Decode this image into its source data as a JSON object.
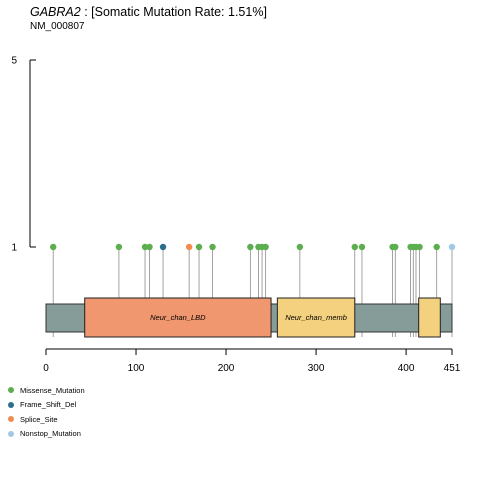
{
  "header": {
    "gene": "GABRA2",
    "rate_text": " : [Somatic Mutation Rate: 1.51%]",
    "transcript": "NM_000807"
  },
  "chart_data": {
    "type": "lollipop",
    "protein_length": 451,
    "xlim": [
      0,
      451
    ],
    "x_ticks": [
      0,
      100,
      200,
      300,
      400,
      451
    ],
    "y_ticks": [
      1,
      5
    ],
    "ylim": [
      0,
      5
    ],
    "domains": [
      {
        "label": "Neur_chan_LBD",
        "start": 43,
        "end": 250,
        "color": "#F0976F"
      },
      {
        "label": "Neur_chan_memb",
        "start": 257,
        "end": 343,
        "color": "#F4D17E"
      },
      {
        "label": "",
        "start": 414,
        "end": 438,
        "color": "#F4D17E"
      }
    ],
    "mutations": [
      {
        "pos": 8,
        "count": 1,
        "type": "Missense_Mutation"
      },
      {
        "pos": 81,
        "count": 1,
        "type": "Missense_Mutation"
      },
      {
        "pos": 110,
        "count": 1,
        "type": "Missense_Mutation"
      },
      {
        "pos": 115,
        "count": 1,
        "type": "Missense_Mutation"
      },
      {
        "pos": 130,
        "count": 1,
        "type": "Frame_Shift_Del"
      },
      {
        "pos": 159,
        "count": 1,
        "type": "Splice_Site"
      },
      {
        "pos": 170,
        "count": 1,
        "type": "Missense_Mutation"
      },
      {
        "pos": 185,
        "count": 1,
        "type": "Missense_Mutation"
      },
      {
        "pos": 227,
        "count": 1,
        "type": "Missense_Mutation"
      },
      {
        "pos": 236,
        "count": 1,
        "type": "Missense_Mutation"
      },
      {
        "pos": 240,
        "count": 1,
        "type": "Missense_Mutation"
      },
      {
        "pos": 244,
        "count": 1,
        "type": "Missense_Mutation"
      },
      {
        "pos": 282,
        "count": 1,
        "type": "Missense_Mutation"
      },
      {
        "pos": 343,
        "count": 1,
        "type": "Missense_Mutation"
      },
      {
        "pos": 351,
        "count": 1,
        "type": "Missense_Mutation"
      },
      {
        "pos": 385,
        "count": 1,
        "type": "Missense_Mutation"
      },
      {
        "pos": 388,
        "count": 1,
        "type": "Missense_Mutation"
      },
      {
        "pos": 405,
        "count": 1,
        "type": "Missense_Mutation"
      },
      {
        "pos": 408,
        "count": 1,
        "type": "Missense_Mutation"
      },
      {
        "pos": 411,
        "count": 1,
        "type": "Missense_Mutation"
      },
      {
        "pos": 415,
        "count": 1,
        "type": "Missense_Mutation"
      },
      {
        "pos": 434,
        "count": 1,
        "type": "Missense_Mutation"
      },
      {
        "pos": 451,
        "count": 1,
        "type": "Nonstop_Mutation"
      }
    ],
    "legend": [
      {
        "label": "Missense_Mutation",
        "color": "#5DAE4E"
      },
      {
        "label": "Frame_Shift_Del",
        "color": "#2D6E8E"
      },
      {
        "label": "Splice_Site",
        "color": "#F28B4E"
      },
      {
        "label": "Nonstop_Mutation",
        "color": "#9FC9E4"
      }
    ],
    "colors": {
      "backbone": "#859C98",
      "stem": "#8C8C8C"
    }
  }
}
